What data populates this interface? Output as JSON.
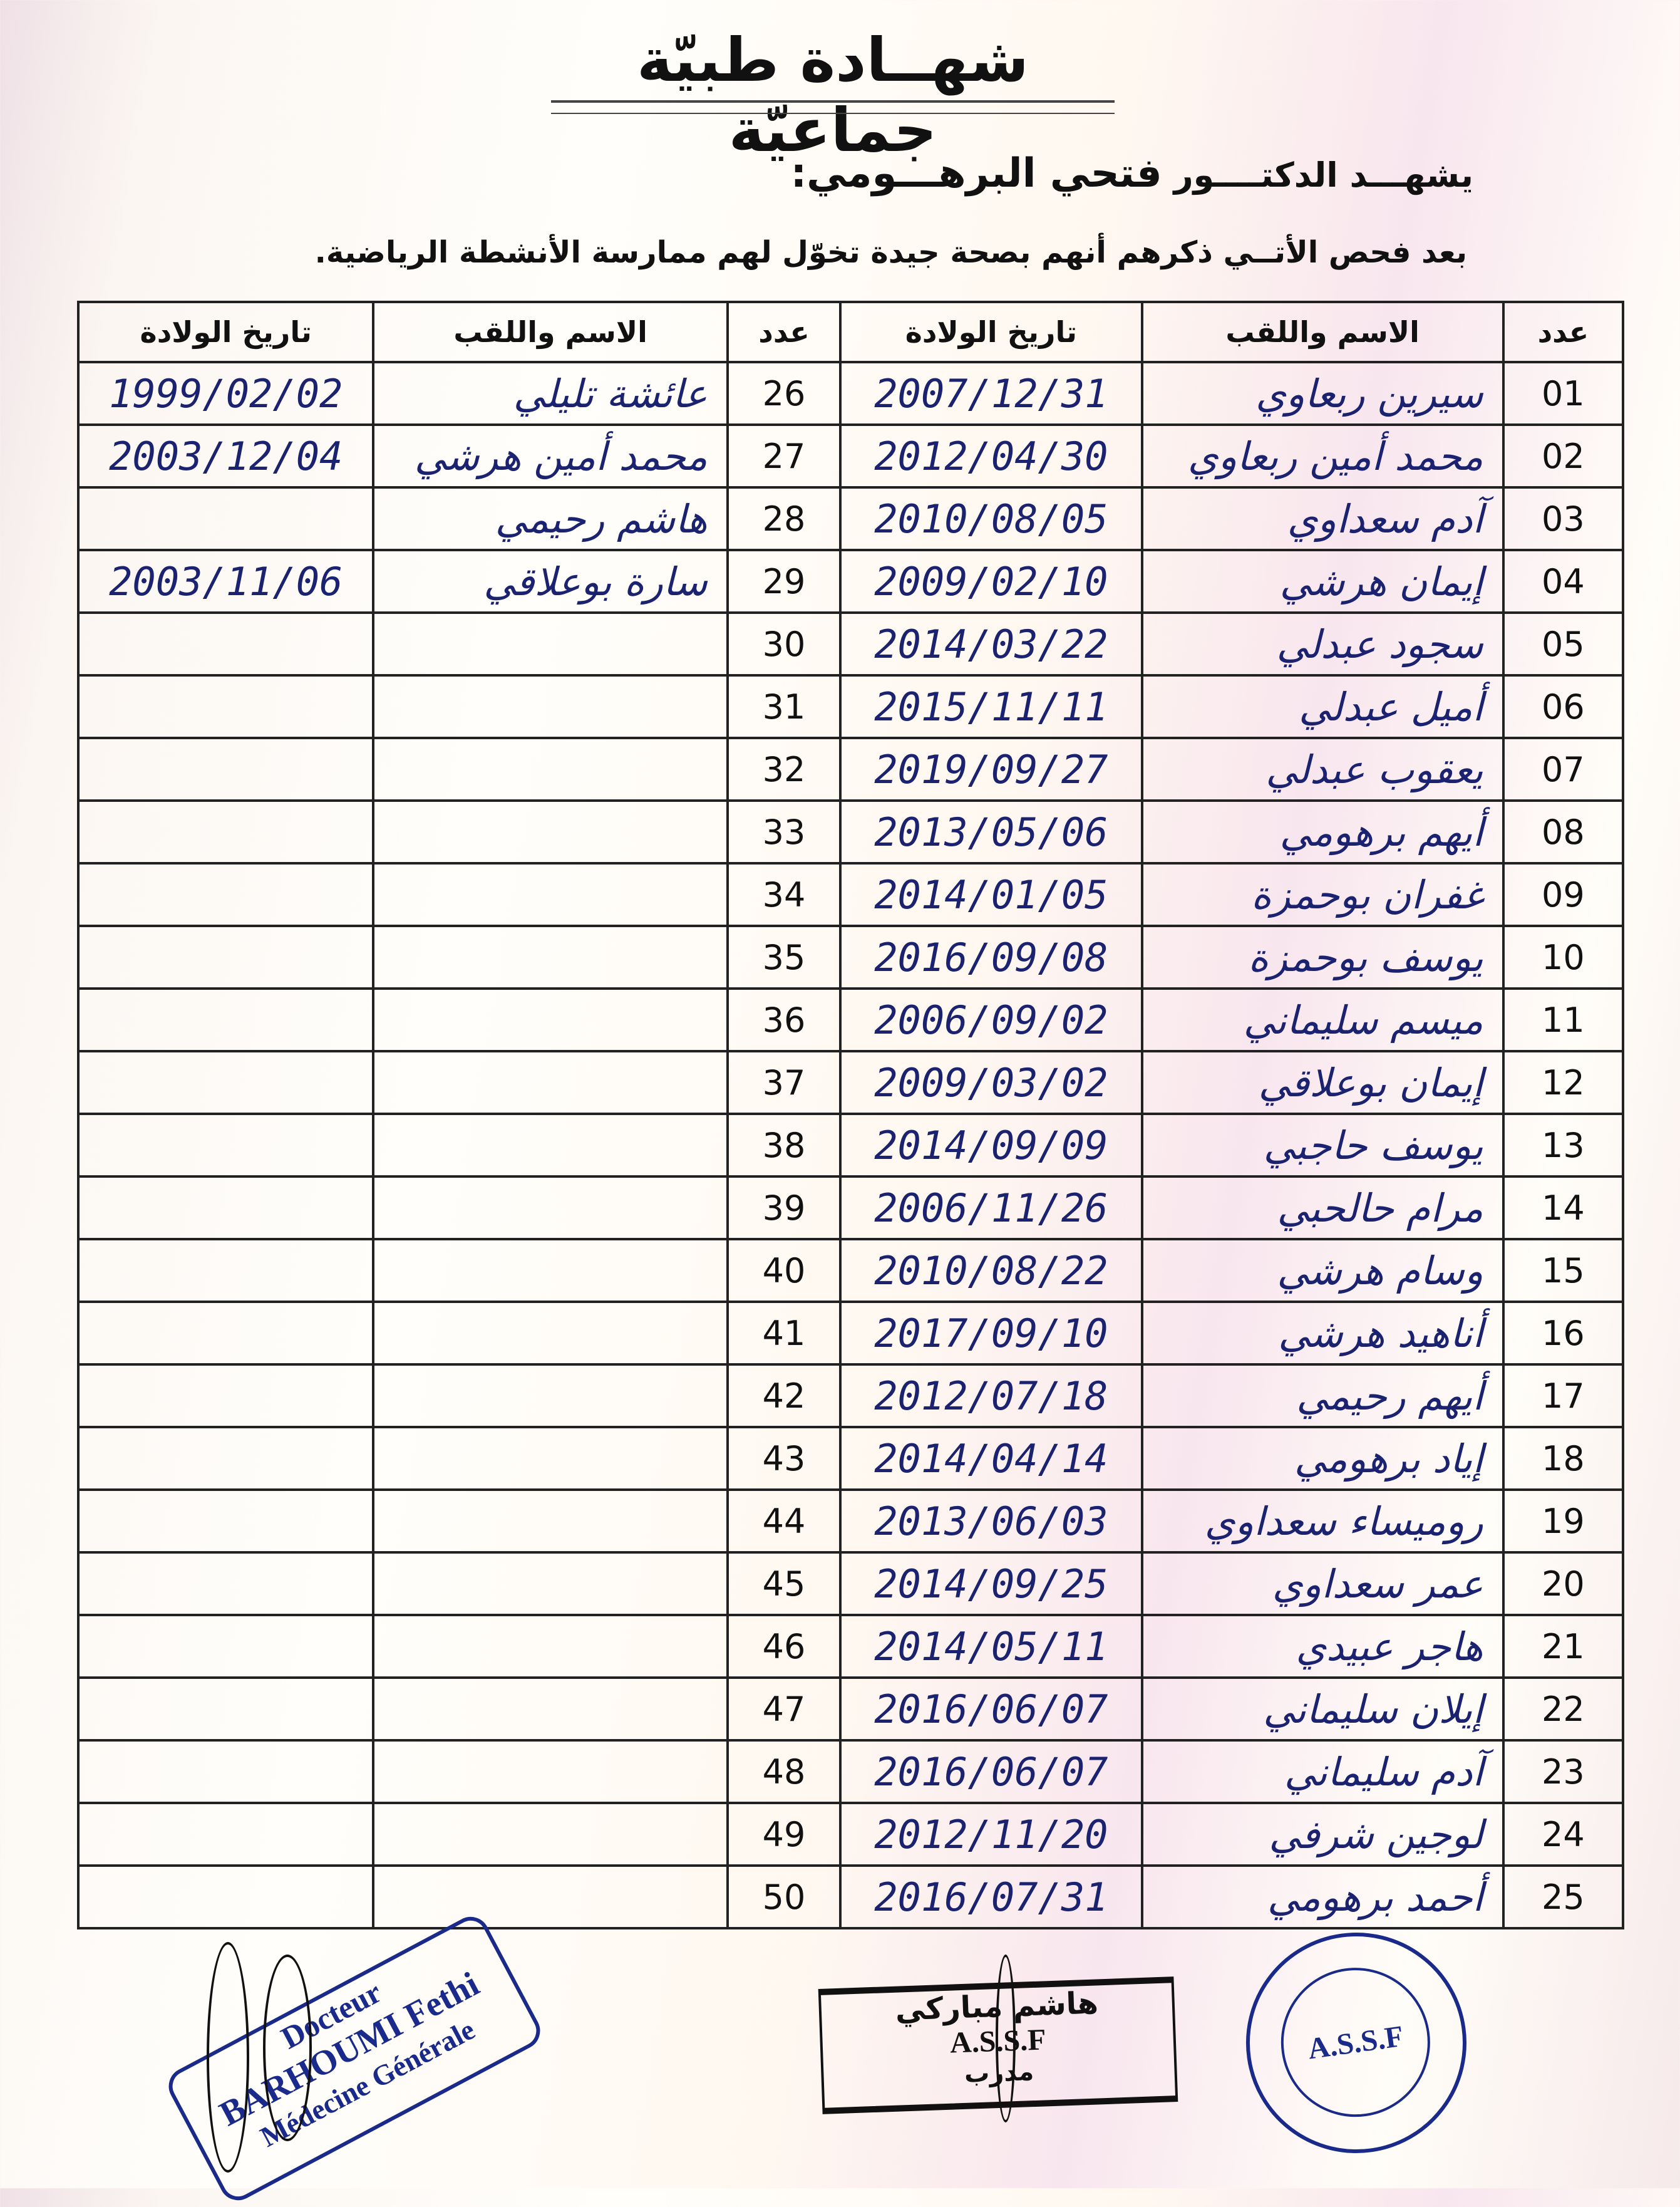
{
  "header": {
    "title": "شهــادة طبيّة جماعيّة",
    "certifies": "يشهـــد الدكتــــور",
    "doctor": "فتحي البرهـــومي:",
    "statement_1": "بعد فحص الأتــي ذكرهم أنهم بصحة جيدة تخوّل لهم ممارسة الأنشطة الرياضية.",
    "statement_2": ""
  },
  "table": {
    "headers": {
      "number": "عدد",
      "name": "الاسم واللقب",
      "birth_date": "تاريخ الولادة"
    },
    "right_rows": [
      {
        "number": "01",
        "name": "سيرين ربعاوي",
        "birth_date": "2007/12/31"
      },
      {
        "number": "02",
        "name": "محمد أمين ربعاوي",
        "birth_date": "2012/04/30"
      },
      {
        "number": "03",
        "name": "آدم سعداوي",
        "birth_date": "2010/08/05"
      },
      {
        "number": "04",
        "name": "إيمان هرشي",
        "birth_date": "2009/02/10"
      },
      {
        "number": "05",
        "name": "سجود عبدلي",
        "birth_date": "2014/03/22"
      },
      {
        "number": "06",
        "name": "أميل عبدلي",
        "birth_date": "2015/11/11"
      },
      {
        "number": "07",
        "name": "يعقوب عبدلي",
        "birth_date": "2019/09/27"
      },
      {
        "number": "08",
        "name": "أيهم برهومي",
        "birth_date": "2013/05/06"
      },
      {
        "number": "09",
        "name": "غفران بوحمزة",
        "birth_date": "2014/01/05"
      },
      {
        "number": "10",
        "name": "يوسف بوحمزة",
        "birth_date": "2016/09/08"
      },
      {
        "number": "11",
        "name": "ميسم سليماني",
        "birth_date": "2006/09/02"
      },
      {
        "number": "12",
        "name": "إيمان بوعلاقي",
        "birth_date": "2009/03/02"
      },
      {
        "number": "13",
        "name": "يوسف حاجبي",
        "birth_date": "2014/09/09"
      },
      {
        "number": "14",
        "name": "مرام حالحبي",
        "birth_date": "2006/11/26"
      },
      {
        "number": "15",
        "name": "وسام هرشي",
        "birth_date": "2010/08/22"
      },
      {
        "number": "16",
        "name": "أناهيد هرشي",
        "birth_date": "2017/09/10"
      },
      {
        "number": "17",
        "name": "أيهم رحيمي",
        "birth_date": "2012/07/18"
      },
      {
        "number": "18",
        "name": "إياد برهومي",
        "birth_date": "2014/04/14"
      },
      {
        "number": "19",
        "name": "روميساء سعداوي",
        "birth_date": "2013/06/03"
      },
      {
        "number": "20",
        "name": "عمر سعداوي",
        "birth_date": "2014/09/25"
      },
      {
        "number": "21",
        "name": "هاجر عبيدي",
        "birth_date": "2014/05/11"
      },
      {
        "number": "22",
        "name": "إيلان سليماني",
        "birth_date": "2016/06/07"
      },
      {
        "number": "23",
        "name": "آدم سليماني",
        "birth_date": "2016/06/07"
      },
      {
        "number": "24",
        "name": "لوجين شرفي",
        "birth_date": "2012/11/20"
      },
      {
        "number": "25",
        "name": "أحمد برهومي",
        "birth_date": "2016/07/31"
      }
    ],
    "left_rows": [
      {
        "number": "26",
        "name": "عائشة تليلي",
        "birth_date": "1999/02/02"
      },
      {
        "number": "27",
        "name": "محمد أمين هرشي",
        "birth_date": "2003/12/04"
      },
      {
        "number": "28",
        "name": "هاشم رحيمي",
        "birth_date": ""
      },
      {
        "number": "29",
        "name": "سارة بوعلاقي",
        "birth_date": "2003/11/06"
      },
      {
        "number": "30",
        "name": "",
        "birth_date": ""
      },
      {
        "number": "31",
        "name": "",
        "birth_date": ""
      },
      {
        "number": "32",
        "name": "",
        "birth_date": ""
      },
      {
        "number": "33",
        "name": "",
        "birth_date": ""
      },
      {
        "number": "34",
        "name": "",
        "birth_date": ""
      },
      {
        "number": "35",
        "name": "",
        "birth_date": ""
      },
      {
        "number": "36",
        "name": "",
        "birth_date": ""
      },
      {
        "number": "37",
        "name": "",
        "birth_date": ""
      },
      {
        "number": "38",
        "name": "",
        "birth_date": ""
      },
      {
        "number": "39",
        "name": "",
        "birth_date": ""
      },
      {
        "number": "40",
        "name": "",
        "birth_date": ""
      },
      {
        "number": "41",
        "name": "",
        "birth_date": ""
      },
      {
        "number": "42",
        "name": "",
        "birth_date": ""
      },
      {
        "number": "43",
        "name": "",
        "birth_date": ""
      },
      {
        "number": "44",
        "name": "",
        "birth_date": ""
      },
      {
        "number": "45",
        "name": "",
        "birth_date": ""
      },
      {
        "number": "46",
        "name": "",
        "birth_date": ""
      },
      {
        "number": "47",
        "name": "",
        "birth_date": ""
      },
      {
        "number": "48",
        "name": "",
        "birth_date": ""
      },
      {
        "number": "49",
        "name": "",
        "birth_date": ""
      },
      {
        "number": "50",
        "name": "",
        "birth_date": ""
      }
    ]
  },
  "stamps": {
    "doctor": {
      "line1": "Docteur",
      "line2": "BARHOUMI Fethi",
      "line3": "Médecine Générale"
    },
    "coach": {
      "name": "هاشم مباركي",
      "org": "A.S.S.F",
      "role": "مدرب"
    },
    "club_seal": {
      "center": "A.S.S.F"
    }
  },
  "colors": {
    "ink": "#1b2370",
    "stamp": "#1a2a8a"
  }
}
